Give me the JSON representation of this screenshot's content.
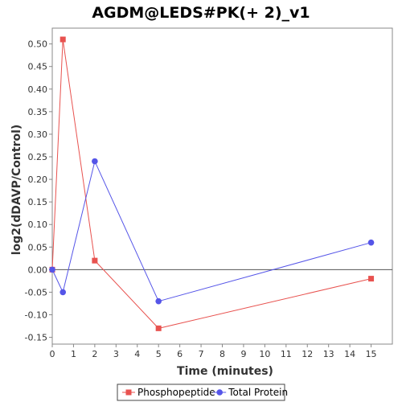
{
  "chart_data": {
    "type": "line",
    "title": "AGDM@LEDS#PK(+ 2)_v1",
    "xlabel": "Time (minutes)",
    "ylabel": "log2(dDAVP/Control)",
    "xlim": [
      0,
      16
    ],
    "ylim": [
      -0.165,
      0.535
    ],
    "x_ticks": [
      0,
      1,
      2,
      3,
      4,
      5,
      6,
      7,
      8,
      9,
      10,
      11,
      12,
      13,
      14,
      15
    ],
    "y_ticks": [
      -0.15,
      -0.1,
      -0.05,
      0.0,
      0.05,
      0.1,
      0.15,
      0.2,
      0.25,
      0.3,
      0.35,
      0.4,
      0.45,
      0.5
    ],
    "y_tick_labels": [
      "-0.15",
      "-0.10",
      "-0.05",
      "0.00",
      "0.05",
      "0.10",
      "0.15",
      "0.20",
      "0.25",
      "0.30",
      "0.35",
      "0.40",
      "0.45",
      "0.50"
    ],
    "reference_line_y": 0,
    "grid": false,
    "legend_position": "bottom",
    "series": [
      {
        "name": "Phosphopeptide",
        "color": "#e8524f",
        "marker": "square",
        "x": [
          0,
          0.5,
          2,
          5,
          15
        ],
        "y": [
          0.0,
          0.51,
          0.02,
          -0.13,
          -0.02
        ]
      },
      {
        "name": "Total Protein",
        "color": "#5555e8",
        "marker": "circle",
        "x": [
          0,
          0.5,
          2,
          5,
          15
        ],
        "y": [
          0.0,
          -0.05,
          0.24,
          -0.07,
          0.06
        ]
      }
    ]
  }
}
